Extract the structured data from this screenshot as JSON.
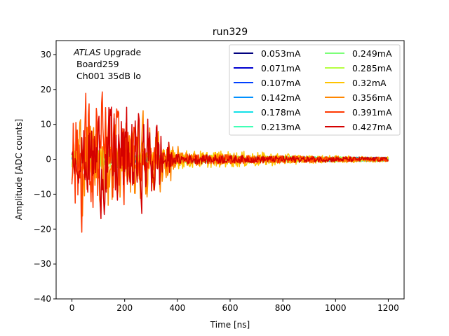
{
  "chart_data": {
    "type": "line",
    "title": "run329",
    "xlabel": "Time [ns]",
    "ylabel": "Amplitude [ADC counts]",
    "xlim": [
      -60,
      1260
    ],
    "ylim": [
      -40,
      34
    ],
    "xticks": [
      0,
      200,
      400,
      600,
      800,
      1000,
      1200
    ],
    "yticks": [
      -40,
      -30,
      -20,
      -10,
      0,
      10,
      20,
      30
    ],
    "grid": false,
    "legend_position": "top-right",
    "legend_columns": 2,
    "annotations": [
      {
        "italic": "ATLAS",
        "text": " Upgrade"
      },
      {
        "italic": "",
        "text": "Board259"
      },
      {
        "italic": "",
        "text": "Ch001 35dB lo"
      }
    ],
    "series": [
      {
        "name": "0.053mA",
        "color": "#00007f",
        "noise_env": [
          [
            0,
            1.2
          ],
          [
            400,
            0.8
          ],
          [
            1200,
            0.6
          ]
        ]
      },
      {
        "name": "0.071mA",
        "color": "#0000d0",
        "noise_env": [
          [
            0,
            1.2
          ],
          [
            400,
            0.8
          ],
          [
            1200,
            0.6
          ]
        ]
      },
      {
        "name": "0.107mA",
        "color": "#0040ff",
        "noise_env": [
          [
            0,
            1.2
          ],
          [
            400,
            0.8
          ],
          [
            1200,
            0.6
          ]
        ]
      },
      {
        "name": "0.142mA",
        "color": "#0090ff",
        "noise_env": [
          [
            0,
            1.2
          ],
          [
            400,
            0.8
          ],
          [
            1200,
            0.6
          ]
        ]
      },
      {
        "name": "0.178mA",
        "color": "#12e0e8",
        "noise_env": [
          [
            0,
            1.5
          ],
          [
            400,
            1.0
          ],
          [
            1200,
            0.6
          ]
        ]
      },
      {
        "name": "0.213mA",
        "color": "#41ffb6",
        "noise_env": [
          [
            0,
            1.5
          ],
          [
            400,
            1.0
          ],
          [
            1200,
            0.6
          ]
        ]
      },
      {
        "name": "0.249mA",
        "color": "#7cff79",
        "noise_env": [
          [
            0,
            2
          ],
          [
            400,
            1.2
          ],
          [
            1200,
            0.6
          ]
        ]
      },
      {
        "name": "0.285mA",
        "color": "#b6ff41",
        "noise_env": [
          [
            0,
            3
          ],
          [
            400,
            1.5
          ],
          [
            1200,
            0.6
          ]
        ]
      },
      {
        "name": "0.32mA",
        "color": "#ffc400",
        "noise_env": [
          [
            0,
            4
          ],
          [
            350,
            3
          ],
          [
            450,
            2.5
          ],
          [
            700,
            2.2
          ],
          [
            900,
            1.2
          ],
          [
            1200,
            0.8
          ]
        ]
      },
      {
        "name": "0.356mA",
        "color": "#ff8600",
        "noise_env": [
          [
            0,
            18
          ],
          [
            150,
            20
          ],
          [
            260,
            18
          ],
          [
            330,
            14
          ],
          [
            370,
            10
          ],
          [
            420,
            2
          ],
          [
            700,
            1.2
          ],
          [
            1200,
            0.6
          ]
        ]
      },
      {
        "name": "0.391mA",
        "color": "#ff3800",
        "noise_env": [
          [
            0,
            22
          ],
          [
            30,
            26
          ],
          [
            100,
            26
          ],
          [
            170,
            20
          ],
          [
            250,
            12
          ],
          [
            300,
            4
          ],
          [
            400,
            1.5
          ],
          [
            1200,
            0.6
          ]
        ]
      },
      {
        "name": "0.427mA",
        "color": "#d40000",
        "noise_env": [
          [
            0,
            3
          ],
          [
            60,
            16
          ],
          [
            150,
            22
          ],
          [
            250,
            18
          ],
          [
            330,
            16
          ],
          [
            380,
            1.5
          ],
          [
            700,
            1
          ],
          [
            1200,
            0.6
          ]
        ]
      }
    ]
  }
}
